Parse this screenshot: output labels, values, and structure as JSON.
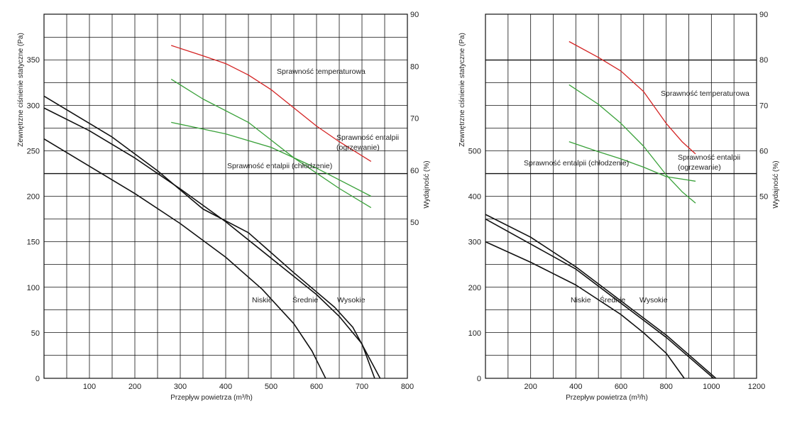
{
  "colors": {
    "curve": "#111111",
    "temperature": "#d42424",
    "enthalpy": "#3aa13a",
    "grid": "#111111"
  },
  "chart_data": [
    {
      "type": "line",
      "title": "",
      "xlabel": "Przepływ powietrza (m³/h)",
      "ylabel": "Zewnętrzne ciśnienie statyczne (Pa)",
      "y2label": "Wydajność (%)",
      "xlim": [
        0,
        800
      ],
      "ylim": [
        0,
        400
      ],
      "y2lim": [
        20,
        90
      ],
      "grid": true,
      "x_ticks": [
        100,
        200,
        300,
        400,
        500,
        600,
        700,
        800
      ],
      "y_ticks": [
        0,
        50,
        100,
        150,
        200,
        250,
        300,
        350
      ],
      "y2_ticks": [
        50,
        60,
        70,
        80,
        90
      ],
      "annotations": {
        "temp": "Sprawność temperaturowa",
        "heat": "Sprawność entalpii\n(ogrzewanie)",
        "cool": "Sprawność entalpii (chłodzenie)",
        "low": "Niskie",
        "mid": "Średnie",
        "high": "Wysokie"
      },
      "series": [
        {
          "name": "Niskie",
          "axis": "left",
          "x": [
            0,
            100,
            200,
            300,
            400,
            480,
            550,
            590,
            610,
            620
          ],
          "y": [
            263,
            233,
            203,
            170,
            133,
            98,
            60,
            30,
            10,
            0
          ]
        },
        {
          "name": "Średnie",
          "axis": "left",
          "x": [
            0,
            100,
            200,
            300,
            400,
            500,
            600,
            650,
            700,
            728
          ],
          "y": [
            297,
            272,
            242,
            208,
            172,
            132,
            92,
            68,
            38,
            0
          ]
        },
        {
          "name": "Wysokie",
          "axis": "left",
          "x": [
            0,
            150,
            250,
            350,
            450,
            550,
            640,
            680,
            740
          ],
          "y": [
            310,
            265,
            228,
            186,
            160,
            116,
            78,
            56,
            0
          ]
        },
        {
          "name": "Sprawność temperaturowa",
          "axis": "right",
          "x": [
            280,
            350,
            400,
            450,
            500,
            600,
            650,
            720
          ],
          "y": [
            84,
            82,
            80.5,
            78.3,
            75.5,
            68.5,
            65.5,
            61.7
          ]
        },
        {
          "name": "Sprawność entalpii (ogrzewanie)",
          "axis": "right",
          "x": [
            280,
            350,
            450,
            550,
            650,
            720
          ],
          "y": [
            77.5,
            73.7,
            69.2,
            62.4,
            56.5,
            52.8
          ]
        },
        {
          "name": "Sprawność entalpii (chłodzenie)",
          "axis": "right",
          "x": [
            280,
            400,
            500,
            600,
            720
          ],
          "y": [
            69.2,
            67,
            64.4,
            60.4,
            55.0
          ]
        }
      ]
    },
    {
      "type": "line",
      "title": "",
      "xlabel": "Przepływ powietrza (m³/h)",
      "ylabel": "Zewnętrzne ciśnienie statyczne (Pa)",
      "y2label": "Wydajność (%)",
      "xlim": [
        0,
        1200
      ],
      "ylim": [
        0,
        800
      ],
      "y2lim": [
        10,
        90
      ],
      "grid": true,
      "x_ticks": [
        200,
        400,
        600,
        800,
        1000,
        1200
      ],
      "y_ticks": [
        0,
        100,
        200,
        300,
        400,
        500
      ],
      "y2_ticks": [
        50,
        60,
        70,
        80,
        90
      ],
      "annotations": {
        "temp": "Sprawność temperaturowa",
        "heat": "Sprawność entalpii\n(ogrzewanie)",
        "cool": "Sprawność entalpii (chłodzenie)",
        "low": "Niskie",
        "mid": "Średnie",
        "high": "Wysokie"
      },
      "series": [
        {
          "name": "Niskie",
          "axis": "left",
          "x": [
            0,
            200,
            400,
            600,
            700,
            800,
            880
          ],
          "y": [
            300,
            255,
            205,
            140,
            100,
            55,
            0
          ]
        },
        {
          "name": "Średnie",
          "axis": "left",
          "x": [
            0,
            200,
            400,
            600,
            800,
            1010
          ],
          "y": [
            350,
            295,
            240,
            165,
            90,
            0
          ]
        },
        {
          "name": "Wysokie",
          "axis": "left",
          "x": [
            0,
            200,
            400,
            600,
            800,
            1020
          ],
          "y": [
            360,
            310,
            245,
            170,
            95,
            0
          ]
        },
        {
          "name": "Sprawność temperaturowa",
          "axis": "right",
          "x": [
            370,
            500,
            600,
            700,
            800,
            870,
            930
          ],
          "y": [
            84,
            80.5,
            77.5,
            73,
            66,
            62,
            59.3
          ]
        },
        {
          "name": "Sprawność entalpii (ogrzewanie)",
          "axis": "right",
          "x": [
            370,
            500,
            600,
            700,
            800,
            870,
            930
          ],
          "y": [
            74.5,
            70.2,
            66,
            61,
            54.7,
            51,
            48.5
          ]
        },
        {
          "name": "Sprawność entalpii (chłodzenie)",
          "axis": "right",
          "x": [
            370,
            500,
            600,
            700,
            800,
            930
          ],
          "y": [
            62,
            59.8,
            58.2,
            56.4,
            54.3,
            53.3
          ]
        }
      ]
    }
  ]
}
